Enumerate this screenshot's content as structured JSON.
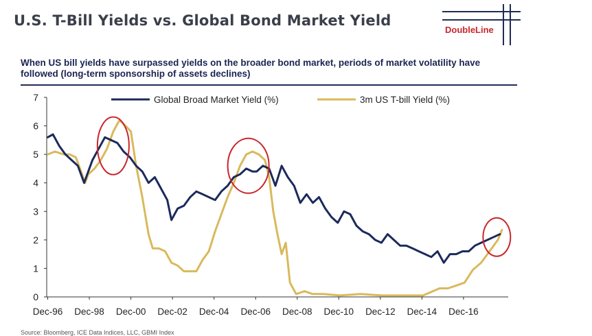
{
  "header": {
    "title": "U.S. T-Bill Yields vs. Global Bond Market Yield",
    "logo_text": "DoubleLine"
  },
  "subtitle": "When US bill yields have surpassed yields on the broader bond market, periods of market volatility have followed (long-term sponsorship of assets declines)",
  "source": "Source: Bloomberg, ICE Data Indices, LLC, GBMI Index",
  "colors": {
    "global": "#1b2a5c",
    "tbill": "#d9b95b",
    "circle": "#c8262b",
    "title": "#3a3f4a"
  },
  "chart_data": {
    "type": "line",
    "title": "",
    "xlabel": "",
    "ylabel": "",
    "xlim": [
      1996.9,
      2019.1
    ],
    "ylim": [
      0,
      7
    ],
    "yticks": [
      0,
      1,
      2,
      3,
      4,
      5,
      6,
      7
    ],
    "xtick_labels": [
      "Dec-96",
      "Dec-98",
      "Dec-00",
      "Dec-02",
      "Dec-04",
      "Dec-06",
      "Dec-08",
      "Dec-10",
      "Dec-12",
      "Dec-14",
      "Dec-16"
    ],
    "xtick_values": [
      1996.95,
      1998.95,
      2000.95,
      2002.95,
      2004.95,
      2006.95,
      2008.95,
      2010.95,
      2012.95,
      2014.95,
      2016.95
    ],
    "legend_position": "top",
    "series": [
      {
        "name": "Global Broad Market Yield (%)",
        "x": [
          1996.95,
          1997.2,
          1997.5,
          1997.8,
          1998.1,
          1998.4,
          1998.7,
          1998.8,
          1999.1,
          1999.4,
          1999.7,
          2000.0,
          2000.3,
          2000.6,
          2000.9,
          2001.2,
          2001.5,
          2001.8,
          2002.1,
          2002.4,
          2002.7,
          2002.9,
          2003.2,
          2003.5,
          2003.8,
          2004.1,
          2004.4,
          2004.7,
          2005.0,
          2005.3,
          2005.6,
          2005.9,
          2006.2,
          2006.5,
          2006.8,
          2007.0,
          2007.3,
          2007.6,
          2007.9,
          2008.2,
          2008.5,
          2008.8,
          2009.1,
          2009.4,
          2009.7,
          2010.0,
          2010.3,
          2010.6,
          2010.9,
          2011.2,
          2011.5,
          2011.8,
          2012.1,
          2012.4,
          2012.7,
          2013.0,
          2013.3,
          2013.6,
          2013.9,
          2014.2,
          2014.5,
          2014.8,
          2015.1,
          2015.4,
          2015.7,
          2016.0,
          2016.3,
          2016.6,
          2016.9,
          2017.2,
          2017.5,
          2017.8,
          2018.1,
          2018.4,
          2018.7
        ],
        "values": [
          5.6,
          5.7,
          5.3,
          5.0,
          4.8,
          4.6,
          4.0,
          4.2,
          4.8,
          5.2,
          5.6,
          5.5,
          5.4,
          5.1,
          4.9,
          4.6,
          4.4,
          4.0,
          4.2,
          3.8,
          3.4,
          2.7,
          3.1,
          3.2,
          3.5,
          3.7,
          3.6,
          3.5,
          3.4,
          3.7,
          3.9,
          4.2,
          4.3,
          4.5,
          4.4,
          4.4,
          4.6,
          4.5,
          3.9,
          4.6,
          4.2,
          3.9,
          3.3,
          3.6,
          3.3,
          3.5,
          3.1,
          2.8,
          2.6,
          3.0,
          2.9,
          2.5,
          2.3,
          2.2,
          2.0,
          1.9,
          2.2,
          2.0,
          1.8,
          1.8,
          1.7,
          1.6,
          1.5,
          1.4,
          1.6,
          1.2,
          1.5,
          1.5,
          1.6,
          1.6,
          1.8,
          1.9,
          2.0,
          2.1,
          2.2
        ]
      },
      {
        "name": "3m US T-bill Yield (%)",
        "x": [
          1996.95,
          1997.3,
          1997.7,
          1998.0,
          1998.3,
          1998.6,
          1998.75,
          1998.9,
          1999.2,
          1999.5,
          1999.8,
          2000.1,
          2000.4,
          2000.7,
          2000.95,
          2001.2,
          2001.5,
          2001.8,
          2002.0,
          2002.3,
          2002.6,
          2002.9,
          2003.2,
          2003.5,
          2003.8,
          2004.1,
          2004.4,
          2004.7,
          2005.0,
          2005.3,
          2005.6,
          2005.9,
          2006.2,
          2006.5,
          2006.8,
          2007.1,
          2007.4,
          2007.6,
          2007.8,
          2008.0,
          2008.2,
          2008.4,
          2008.6,
          2008.9,
          2009.3,
          2009.7,
          2010.2,
          2011.0,
          2012.0,
          2013.0,
          2014.0,
          2015.0,
          2015.8,
          2016.2,
          2016.6,
          2017.0,
          2017.4,
          2017.8,
          2018.2,
          2018.6,
          2018.8
        ],
        "values": [
          5.0,
          5.1,
          5.0,
          5.0,
          4.9,
          4.3,
          4.0,
          4.3,
          4.5,
          4.8,
          5.2,
          5.8,
          6.2,
          6.0,
          5.8,
          4.6,
          3.5,
          2.2,
          1.7,
          1.7,
          1.6,
          1.2,
          1.1,
          0.9,
          0.9,
          0.9,
          1.3,
          1.6,
          2.3,
          2.9,
          3.5,
          4.0,
          4.6,
          5.0,
          5.1,
          5.0,
          4.8,
          4.2,
          3.0,
          2.2,
          1.5,
          1.9,
          0.5,
          0.1,
          0.2,
          0.1,
          0.1,
          0.05,
          0.1,
          0.05,
          0.05,
          0.05,
          0.3,
          0.3,
          0.4,
          0.5,
          0.95,
          1.2,
          1.6,
          2.0,
          2.35
        ]
      }
    ],
    "annotations": [
      {
        "type": "circle",
        "x": 2000.1,
        "y": 5.3
      },
      {
        "type": "circle",
        "x": 2006.6,
        "y": 4.6
      },
      {
        "type": "circle",
        "x": 2018.55,
        "y": 2.1
      }
    ]
  }
}
